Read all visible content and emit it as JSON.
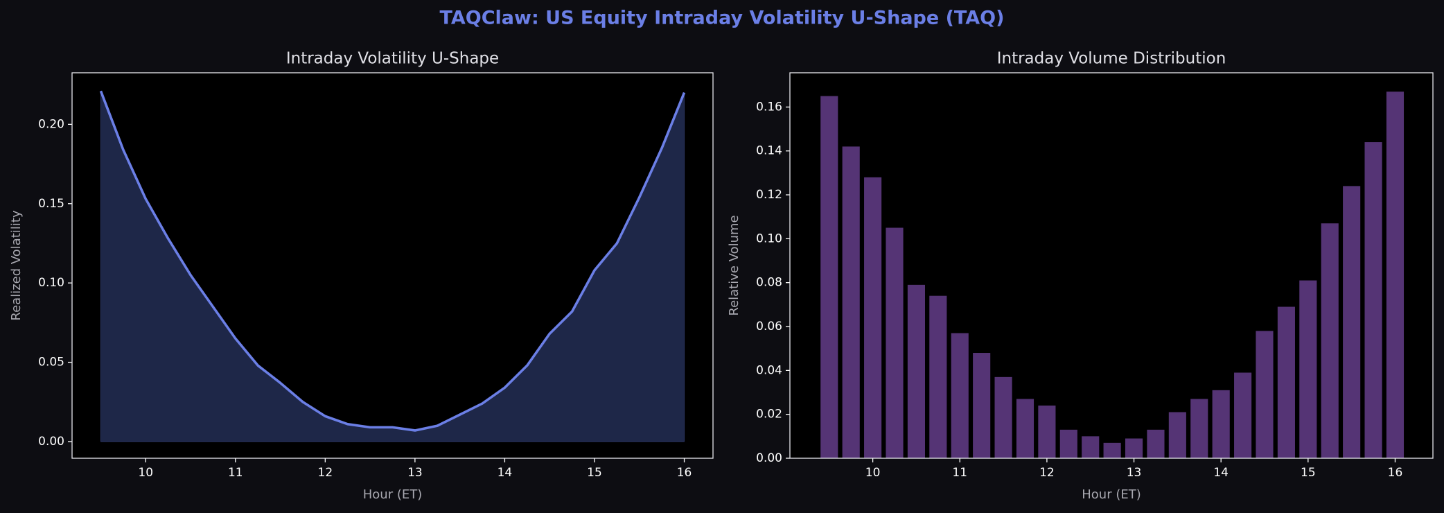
{
  "title": "TAQClaw: US Equity Intraday Volatility U-Shape (TAQ)",
  "chart_data": [
    {
      "type": "line",
      "title": "Intraday Volatility U-Shape",
      "xlabel": "Hour (ET)",
      "ylabel": "Realized Volatility",
      "x": [
        9.5,
        9.75,
        10,
        10.25,
        10.5,
        10.75,
        11,
        11.25,
        11.5,
        11.75,
        12,
        12.25,
        12.5,
        12.75,
        13,
        13.25,
        13.5,
        13.75,
        14,
        14.25,
        14.5,
        14.75,
        15,
        15.25,
        15.5,
        15.75,
        16
      ],
      "values": [
        0.221,
        0.184,
        0.153,
        0.128,
        0.105,
        0.085,
        0.065,
        0.048,
        0.037,
        0.025,
        0.016,
        0.011,
        0.009,
        0.009,
        0.007,
        0.01,
        0.017,
        0.024,
        0.034,
        0.048,
        0.068,
        0.082,
        0.108,
        0.125,
        0.154,
        0.185,
        0.22
      ],
      "color": "#6b7fe6",
      "fill_color": "#1e2748",
      "xlim": [
        9.18,
        16.32
      ],
      "ylim": [
        -0.0105,
        0.2325
      ],
      "xticks": [
        10,
        11,
        12,
        13,
        14,
        15,
        16
      ],
      "yticks": [
        {
          "value": 0,
          "label": "0.00"
        },
        {
          "value": 0.05,
          "label": "0.05"
        },
        {
          "value": 0.1,
          "label": "0.10"
        },
        {
          "value": 0.15,
          "label": "0.15"
        },
        {
          "value": 0.2,
          "label": "0.20"
        }
      ]
    },
    {
      "type": "bar",
      "title": "Intraday Volume Distribution",
      "xlabel": "Hour (ET)",
      "ylabel": "Relative Volume",
      "x": [
        9.5,
        9.75,
        10,
        10.25,
        10.5,
        10.75,
        11,
        11.25,
        11.5,
        11.75,
        12,
        12.25,
        12.5,
        12.75,
        13,
        13.25,
        13.5,
        13.75,
        14,
        14.25,
        14.5,
        14.75,
        15,
        15.25,
        15.5,
        15.75,
        16
      ],
      "values": [
        0.165,
        0.142,
        0.128,
        0.105,
        0.079,
        0.074,
        0.057,
        0.048,
        0.037,
        0.027,
        0.024,
        0.013,
        0.01,
        0.007,
        0.009,
        0.013,
        0.021,
        0.027,
        0.031,
        0.039,
        0.058,
        0.069,
        0.081,
        0.107,
        0.124,
        0.144,
        0.167
      ],
      "color": "#553475",
      "xlim": [
        9.048,
        16.434
      ],
      "ylim": [
        0,
        0.1756
      ],
      "xticks": [
        10,
        11,
        12,
        13,
        14,
        15,
        16
      ],
      "yticks": [
        {
          "value": 0,
          "label": "0.00"
        },
        {
          "value": 0.02,
          "label": "0.02"
        },
        {
          "value": 0.04,
          "label": "0.04"
        },
        {
          "value": 0.06,
          "label": "0.06"
        },
        {
          "value": 0.08,
          "label": "0.08"
        },
        {
          "value": 0.1,
          "label": "0.10"
        },
        {
          "value": 0.12,
          "label": "0.12"
        },
        {
          "value": 0.14,
          "label": "0.14"
        },
        {
          "value": 0.16,
          "label": "0.16"
        }
      ]
    }
  ]
}
